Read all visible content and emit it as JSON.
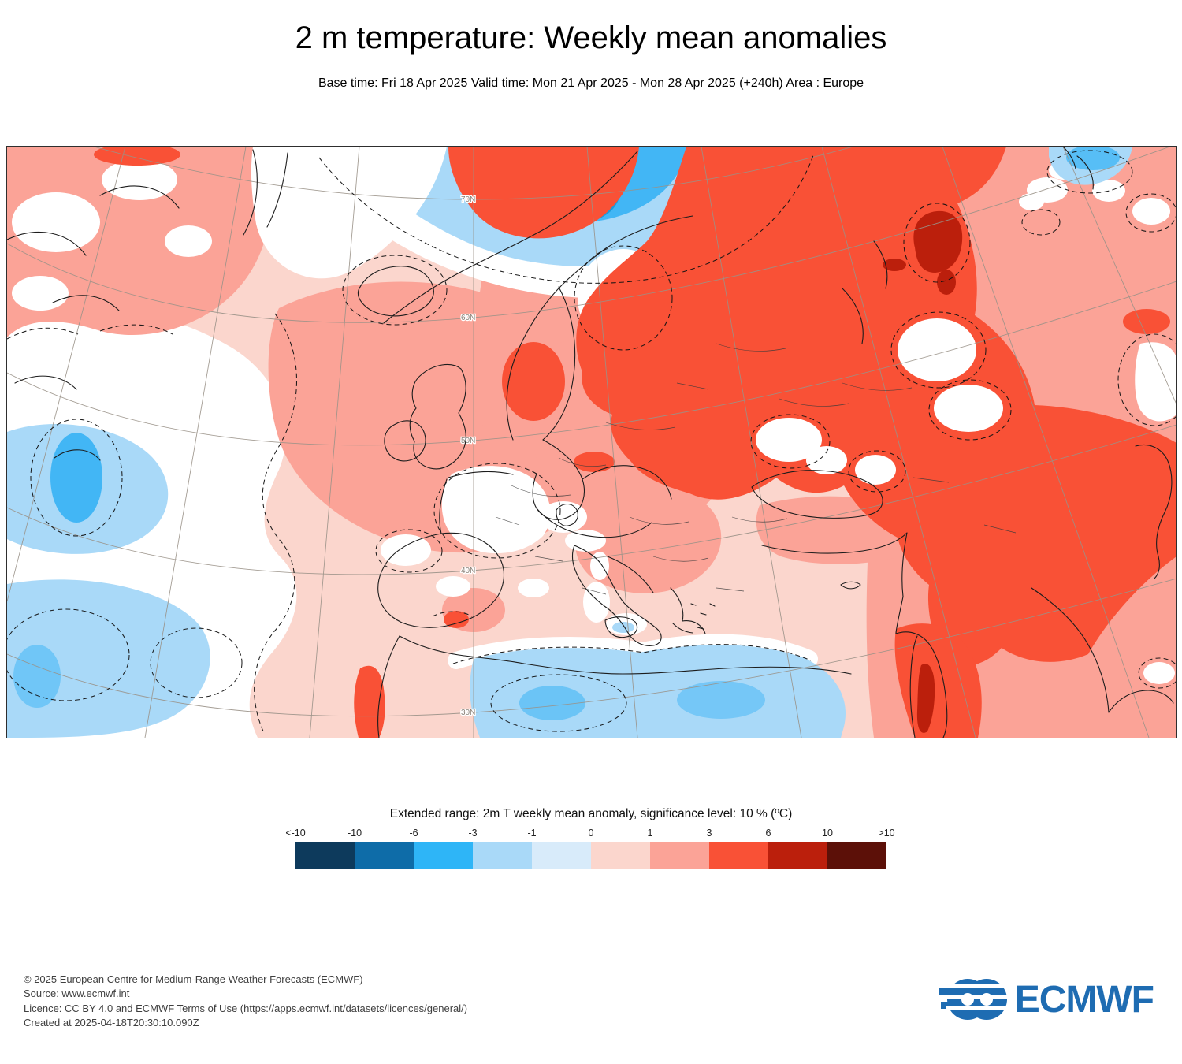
{
  "title": "2 m temperature: Weekly mean anomalies",
  "subtitle": "Base time: Fri 18 Apr 2025 Valid time: Mon 21 Apr 2025 - Mon 28 Apr 2025 (+240h) Area : Europe",
  "map": {
    "latitude_labels": [
      "70N",
      "60N",
      "50N",
      "40N",
      "30N"
    ]
  },
  "legend": {
    "title": "Extended range: 2m T weekly mean anomaly, significance level: 10 % (ºC)",
    "tick_labels": [
      "<-10",
      "-10",
      "-6",
      "-3",
      "-1",
      "0",
      "1",
      "3",
      "6",
      "10",
      ">10"
    ],
    "colors": [
      "#0d3a5c",
      "#0e6ca8",
      "#2eb5f7",
      "#a9d9f8",
      "#d8ebfa",
      "#fbd6cd",
      "#fba397",
      "#f95136",
      "#bb1f0c",
      "#5c1008"
    ]
  },
  "footer": {
    "lines": [
      "© 2025 European Centre for Medium-Range Weather Forecasts (ECMWF)",
      "Source: www.ecmwf.int",
      "Licence: CC BY 4.0 and ECMWF Terms of Use (https://apps.ecmwf.int/datasets/licences/general/)",
      "Created at 2025-04-18T20:30:10.090Z"
    ],
    "logo_text": "ECMWF",
    "logo_color": "#1e6cb2"
  }
}
